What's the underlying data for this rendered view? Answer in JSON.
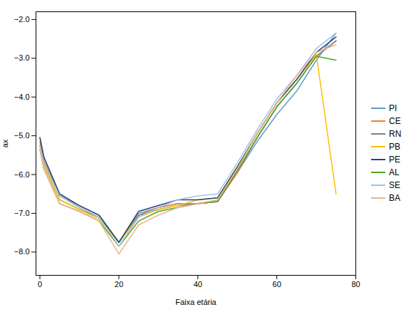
{
  "chart_data": {
    "type": "line",
    "xlabel": "Faixa etária",
    "ylabel": "ax",
    "x": [
      0,
      1,
      5,
      10,
      15,
      20,
      25,
      30,
      35,
      40,
      45,
      50,
      55,
      60,
      65,
      70,
      75
    ],
    "series": [
      {
        "name": "PI",
        "color": "#5B9BD5",
        "values": [
          -5.05,
          -5.55,
          -6.55,
          -6.8,
          -7.05,
          -7.75,
          -7.0,
          -6.85,
          -6.75,
          -6.75,
          -6.7,
          -5.95,
          -5.15,
          -4.45,
          -3.85,
          -3.05,
          -2.35
        ]
      },
      {
        "name": "CE",
        "color": "#ED7D31",
        "values": [
          -5.15,
          -5.65,
          -6.55,
          -6.85,
          -7.1,
          -7.75,
          -7.05,
          -6.85,
          -6.75,
          -6.75,
          -6.7,
          -5.95,
          -5.05,
          -4.25,
          -3.65,
          -2.95,
          -2.55
        ]
      },
      {
        "name": "RN",
        "color": "#808080",
        "values": [
          -5.25,
          -5.75,
          -6.65,
          -6.9,
          -7.1,
          -7.75,
          -7.05,
          -6.9,
          -6.8,
          -6.75,
          -6.7,
          -5.9,
          -5.05,
          -4.25,
          -3.65,
          -2.95,
          -2.55
        ]
      },
      {
        "name": "PB",
        "color": "#FFC000",
        "values": [
          -5.25,
          -5.75,
          -6.65,
          -6.9,
          -7.15,
          -7.75,
          -7.1,
          -6.9,
          -6.8,
          -6.65,
          -6.6,
          -5.8,
          -4.95,
          -4.15,
          -3.55,
          -2.9,
          -6.5
        ]
      },
      {
        "name": "PE",
        "color": "#264478",
        "values": [
          -5.05,
          -5.55,
          -6.5,
          -6.8,
          -7.05,
          -7.75,
          -6.95,
          -6.8,
          -6.65,
          -6.65,
          -6.6,
          -5.8,
          -4.95,
          -4.15,
          -3.55,
          -2.85,
          -2.45
        ]
      },
      {
        "name": "AL",
        "color": "#4EA72A",
        "values": [
          -5.35,
          -5.85,
          -6.75,
          -6.95,
          -7.2,
          -7.85,
          -7.2,
          -6.95,
          -6.85,
          -6.75,
          -6.7,
          -5.9,
          -5.05,
          -4.25,
          -3.65,
          -2.95,
          -3.05
        ]
      },
      {
        "name": "SE",
        "color": "#9DC3E6",
        "values": [
          -5.25,
          -5.7,
          -6.55,
          -6.85,
          -7.1,
          -7.85,
          -7.1,
          -6.85,
          -6.65,
          -6.55,
          -6.5,
          -5.7,
          -4.85,
          -4.05,
          -3.45,
          -2.75,
          -2.35
        ]
      },
      {
        "name": "BA",
        "color": "#F4B183",
        "values": [
          -5.35,
          -5.85,
          -6.75,
          -6.95,
          -7.2,
          -8.05,
          -7.3,
          -7.05,
          -6.85,
          -6.75,
          -6.65,
          -5.85,
          -4.95,
          -4.15,
          -3.45,
          -2.85,
          -2.65
        ]
      }
    ],
    "xlim": [
      -1,
      80
    ],
    "ylim": [
      -8.6,
      -1.8
    ],
    "xticks": [
      0,
      20,
      40,
      60,
      80
    ],
    "yticks": [
      -8,
      -7,
      -6,
      -5,
      -4,
      -3,
      -2
    ],
    "grid": false,
    "legend": "right"
  }
}
